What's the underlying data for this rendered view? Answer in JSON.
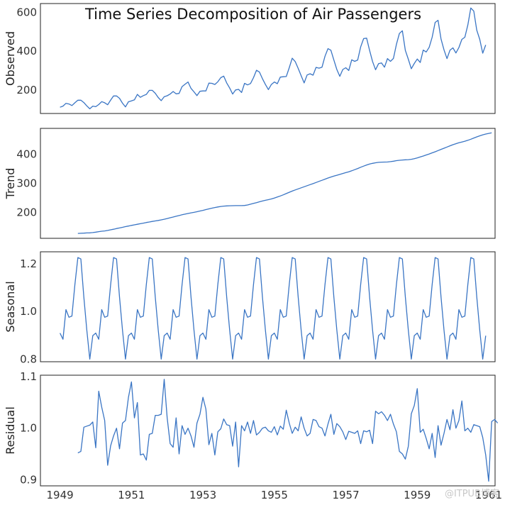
{
  "chart_data": {
    "type": "line",
    "title": "Time Series Decomposition of Air Passengers",
    "x_ticks": [
      "1949",
      "1951",
      "1953",
      "1955",
      "1957",
      "1959",
      "1961"
    ],
    "series_color": "#3a75c4",
    "start": "1949-01",
    "frequency": "monthly",
    "panels": [
      {
        "ylabel": "Observed",
        "ylim": [
          80,
          645
        ],
        "yticks": [
          200,
          400,
          600
        ],
        "values": [
          112,
          118,
          132,
          129,
          121,
          135,
          148,
          148,
          136,
          119,
          104,
          118,
          115,
          126,
          141,
          135,
          125,
          149,
          170,
          170,
          158,
          133,
          114,
          140,
          145,
          150,
          178,
          163,
          172,
          178,
          199,
          199,
          184,
          162,
          146,
          166,
          171,
          180,
          193,
          181,
          183,
          218,
          230,
          242,
          209,
          191,
          172,
          194,
          196,
          196,
          236,
          235,
          229,
          243,
          264,
          272,
          237,
          211,
          180,
          201,
          204,
          188,
          235,
          227,
          234,
          264,
          302,
          293,
          259,
          229,
          203,
          229,
          242,
          233,
          267,
          269,
          270,
          315,
          364,
          347,
          312,
          274,
          237,
          278,
          284,
          277,
          317,
          313,
          318,
          374,
          413,
          405,
          355,
          306,
          271,
          306,
          315,
          301,
          356,
          348,
          355,
          422,
          465,
          467,
          404,
          347,
          305,
          336,
          340,
          318,
          362,
          348,
          363,
          435,
          491,
          505,
          404,
          359,
          310,
          337,
          360,
          342,
          406,
          396,
          420,
          472,
          548,
          559,
          463,
          407,
          362,
          405,
          417,
          391,
          419,
          461,
          472,
          535,
          622,
          606,
          508,
          461,
          390,
          432
        ]
      },
      {
        "ylabel": "Trend",
        "ylim": [
          110,
          490
        ],
        "yticks": [
          200,
          300,
          400
        ],
        "values": [
          null,
          null,
          null,
          null,
          null,
          null,
          126.8,
          127.3,
          127.9,
          128.6,
          129.0,
          129.8,
          131.3,
          133.1,
          134.4,
          135.6,
          137.3,
          139.3,
          141.5,
          143.8,
          145.7,
          147.9,
          150.5,
          152.5,
          154.5,
          156.5,
          158.5,
          160.5,
          162.5,
          164.6,
          166.5,
          168.4,
          170.0,
          171.7,
          173.8,
          176.0,
          178.5,
          181.1,
          183.6,
          186.3,
          188.7,
          191.4,
          193.7,
          195.9,
          197.9,
          199.8,
          202.0,
          204.3,
          206.7,
          209.2,
          211.8,
          214.3,
          216.5,
          218.4,
          220.1,
          221.3,
          222.1,
          222.6,
          222.8,
          223.1,
          223.0,
          223.1,
          223.6,
          225.2,
          227.8,
          230.6,
          233.4,
          236.3,
          239.0,
          241.3,
          243.5,
          246.1,
          249.2,
          252.7,
          256.3,
          260.4,
          264.6,
          269.0,
          273.3,
          277.3,
          281.0,
          284.6,
          288.2,
          291.8,
          295.5,
          299.1,
          302.9,
          306.8,
          310.6,
          314.5,
          318.3,
          321.8,
          325.0,
          328.0,
          331.0,
          334.0,
          337.0,
          340.0,
          343.5,
          347.3,
          351.3,
          355.6,
          359.6,
          363.4,
          366.6,
          369.2,
          371.1,
          372.6,
          373.4,
          373.6,
          373.9,
          374.9,
          376.6,
          378.4,
          379.7,
          380.6,
          381.3,
          382.0,
          383.2,
          385.3,
          388.0,
          391.1,
          394.4,
          398.0,
          401.5,
          405.4,
          409.2,
          413.3,
          417.4,
          421.3,
          425.5,
          429.6,
          433.6,
          437.1,
          440.3,
          442.9,
          445.6,
          448.9,
          452.6,
          456.6,
          460.5,
          464.3,
          467.6,
          470.4,
          472.6,
          474.8,
          null,
          null,
          null,
          null,
          null,
          null
        ]
      },
      {
        "ylabel": "Seasonal",
        "ylim": [
          0.79,
          1.25
        ],
        "yticks": [
          0.8,
          1.0,
          1.2
        ],
        "pattern": [
          0.91,
          0.884,
          1.008,
          0.976,
          0.981,
          1.113,
          1.226,
          1.22,
          1.061,
          0.922,
          0.801,
          0.899
        ],
        "years": 12
      },
      {
        "ylabel": "Residual",
        "ylim": [
          0.888,
          1.103
        ],
        "yticks": [
          0.9,
          1.0,
          1.1
        ],
        "values": [
          null,
          null,
          null,
          null,
          null,
          null,
          0.952,
          0.955,
          1.002,
          1.004,
          1.006,
          1.012,
          0.962,
          1.072,
          1.041,
          1.015,
          0.928,
          0.966,
          0.985,
          1.0,
          0.96,
          1.01,
          1.015,
          1.06,
          1.09,
          1.02,
          1.05,
          0.948,
          0.95,
          0.938,
          0.988,
          0.99,
          1.025,
          1.025,
          1.027,
          1.095,
          1.02,
          0.97,
          0.963,
          1.02,
          0.95,
          1.005,
          0.988,
          1.0,
          0.985,
          0.963,
          1.01,
          1.027,
          1.06,
          1.037,
          0.968,
          0.99,
          0.948,
          0.993,
          0.999,
          1.018,
          1.007,
          1.005,
          0.965,
          1.012,
          0.925,
          1.005,
          0.995,
          1.012,
          0.99,
          1.015,
          0.987,
          0.992,
          1.0,
          1.002,
          0.995,
          0.992,
          1.003,
          0.987,
          1.004,
          0.998,
          1.035,
          1.01,
          0.99,
          1.002,
          0.995,
          1.022,
          1.0,
          0.985,
          0.99,
          1.017,
          1.015,
          1.003,
          1.0,
          0.985,
          1.008,
          1.027,
          0.988,
          1.009,
          1.003,
          0.993,
          0.978,
          0.994,
          0.992,
          0.99,
          0.995,
          0.97,
          0.995,
          0.993,
          0.996,
          0.97,
          1.033,
          1.028,
          1.032,
          1.025,
          1.015,
          1.027,
          1.008,
          0.993,
          0.955,
          0.95,
          0.94,
          0.965,
          1.028,
          1.044,
          1.077,
          0.992,
          0.998,
          0.98,
          0.96,
          0.99,
          0.943,
          1.005,
          0.967,
          0.99,
          1.017,
          0.997,
          1.036,
          1.0,
          1.015,
          1.053,
          0.995,
          1.0,
          0.992,
          1.007,
          1.005,
          1.003,
          0.982,
          0.948,
          0.897,
          1.013,
          1.017,
          1.01,
          null,
          null,
          null,
          null,
          null,
          null
        ]
      }
    ]
  },
  "watermark": "@ITPUB博客"
}
